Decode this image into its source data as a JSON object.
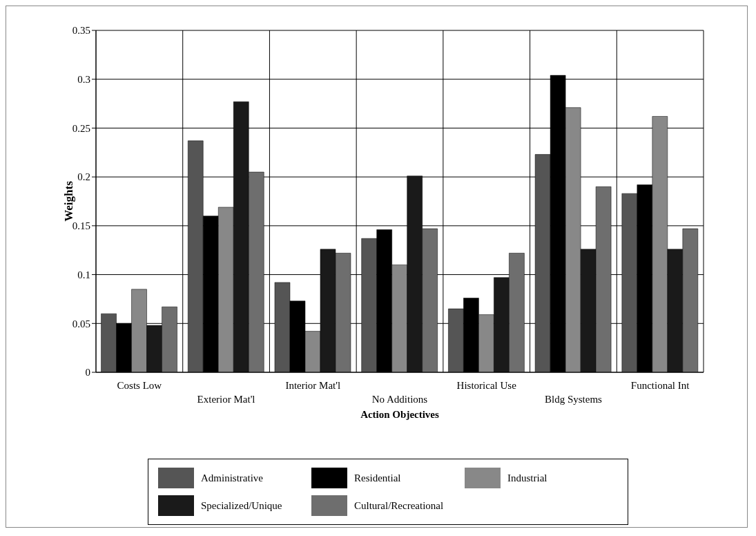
{
  "chart_data": {
    "type": "bar",
    "xlabel": "Action Objectives",
    "ylabel": "Weights",
    "categories": [
      "Costs Low",
      "Exterior Mat'l",
      "Interior Mat'l",
      "No Additions",
      "Historical Use",
      "Bldg Systems",
      "Functional Int"
    ],
    "series": [
      {
        "name": "Administrative",
        "color": "#555555",
        "values": [
          0.06,
          0.237,
          0.092,
          0.137,
          0.065,
          0.223,
          0.183
        ]
      },
      {
        "name": "Residential",
        "color": "#000000",
        "values": [
          0.05,
          0.16,
          0.073,
          0.146,
          0.076,
          0.304,
          0.192
        ]
      },
      {
        "name": "Industrial",
        "color": "#888888",
        "values": [
          0.085,
          0.169,
          0.042,
          0.11,
          0.059,
          0.271,
          0.262
        ]
      },
      {
        "name": "Specialized/Unique",
        "color": "#1a1a1a",
        "values": [
          0.048,
          0.277,
          0.126,
          0.201,
          0.097,
          0.126,
          0.126
        ]
      },
      {
        "name": "Cultural/Recreational",
        "color": "#6e6e6e",
        "values": [
          0.067,
          0.205,
          0.122,
          0.147,
          0.122,
          0.19,
          0.147
        ]
      }
    ],
    "ylim": [
      0,
      0.35
    ],
    "yticks": [
      0,
      0.05,
      0.1,
      0.15,
      0.2,
      0.25,
      0.3,
      0.35
    ],
    "grid": true,
    "legend": "bottom"
  }
}
